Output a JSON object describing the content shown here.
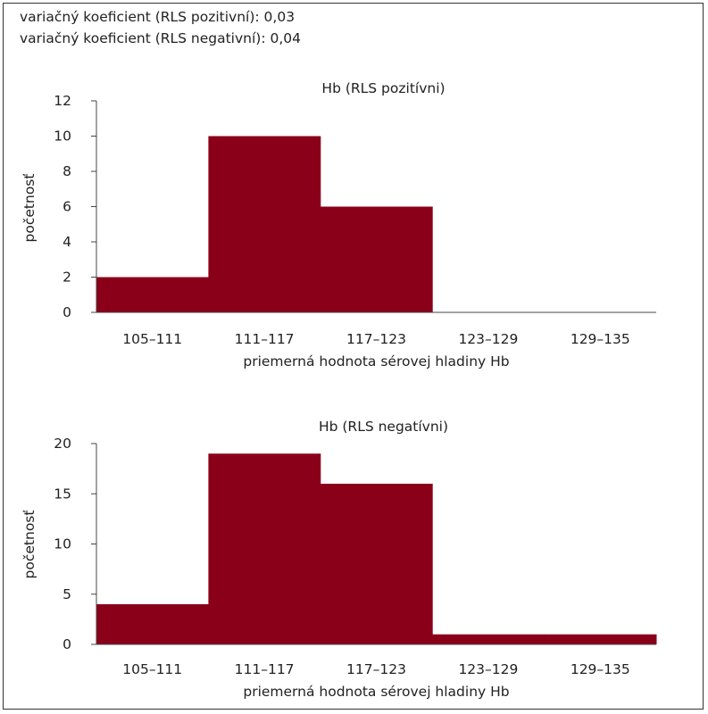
{
  "header": {
    "line1": "variačný koeficient (RLS pozitivní): 0,03",
    "line2": "variačný koeficient (RLS negativní): 0,04"
  },
  "chart_data": [
    {
      "type": "bar",
      "title": "Hb (RLS pozitívni)",
      "xlabel": "priemerná hodnota sérovej hladiny Hb",
      "ylabel": "početnosť",
      "categories": [
        "105–111",
        "111–117",
        "117–123",
        "123–129",
        "129–135"
      ],
      "values": [
        2,
        10,
        6,
        0,
        0
      ],
      "ylim": [
        0,
        12
      ],
      "yticks": [
        0,
        2,
        4,
        6,
        8,
        10,
        12
      ],
      "color": "#8b0019",
      "grid": false,
      "legend": "none"
    },
    {
      "type": "bar",
      "title": "Hb (RLS negatívni)",
      "xlabel": "priemerná hodnota sérovej hladiny Hb",
      "ylabel": "početnosť",
      "categories": [
        "105–111",
        "111–117",
        "117–123",
        "123–129",
        "129–135"
      ],
      "values": [
        4,
        19,
        16,
        1,
        1
      ],
      "ylim": [
        0,
        20
      ],
      "yticks": [
        0,
        5,
        10,
        15,
        20
      ],
      "color": "#8b0019",
      "grid": false,
      "legend": "none"
    }
  ]
}
